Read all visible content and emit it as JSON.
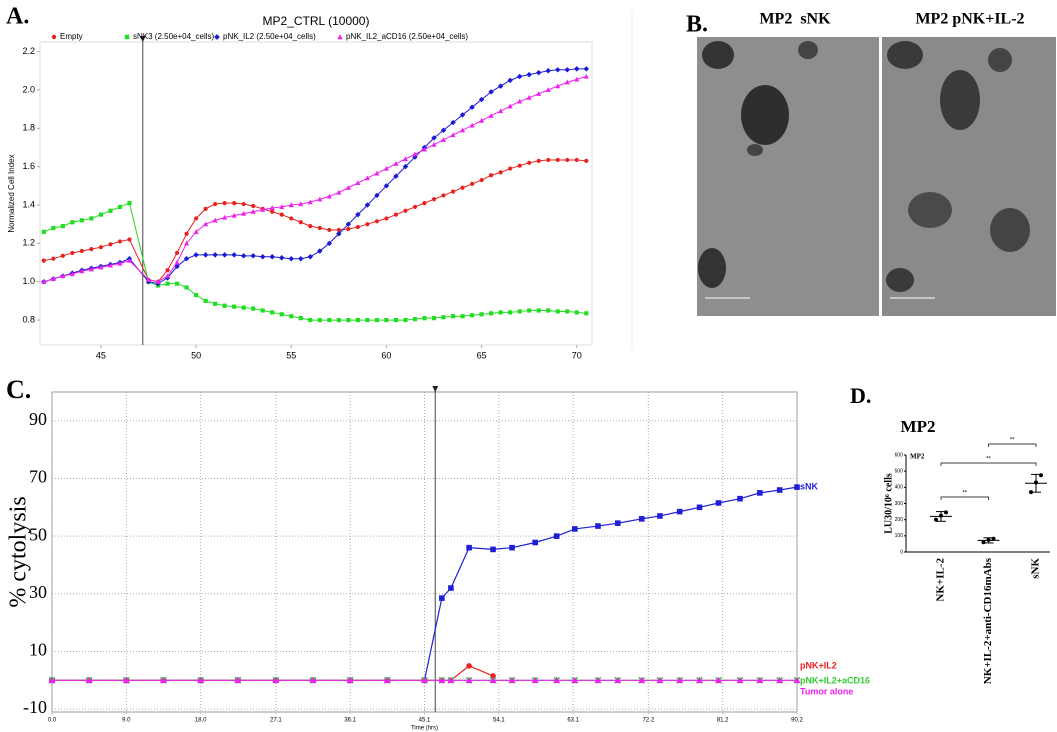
{
  "panels": {
    "a": "A.",
    "b": "B.",
    "c": "C.",
    "d": "D."
  },
  "images": {
    "captions": [
      "MP2  sNK",
      "MP2 pNK+IL-2"
    ]
  },
  "chart_data": [
    {
      "type": "line",
      "title": "MP2_CTRL (10000)",
      "ylabel": "Normalized Cell Index",
      "legend": "top",
      "grid": false,
      "vline": 47.2,
      "xlim": [
        41.8,
        70.8
      ],
      "xticks": [
        45,
        50,
        55,
        60,
        65,
        70
      ],
      "ylim": [
        0.67,
        2.25
      ],
      "yticks": [
        0.8,
        {
          "value": 1,
          "label": "1.0"
        },
        1.2,
        1.4,
        1.6,
        1.8,
        {
          "value": 2,
          "label": "2.0"
        },
        2.2
      ],
      "x": [
        42,
        42.5,
        43,
        43.5,
        44,
        44.5,
        45,
        45.5,
        46,
        46.5,
        47.5,
        48,
        48.5,
        49,
        49.5,
        50,
        50.5,
        51,
        51.5,
        52,
        52.5,
        53,
        53.5,
        54,
        54.5,
        55,
        55.5,
        56,
        56.5,
        57,
        57.5,
        58,
        58.5,
        59,
        59.5,
        60,
        60.5,
        61,
        61.5,
        62,
        62.5,
        63,
        63.5,
        64,
        64.5,
        65,
        65.5,
        66,
        66.5,
        67,
        67.5,
        68,
        68.5,
        69,
        69.5,
        70,
        70.5
      ],
      "series": [
        {
          "name": "Empty",
          "color": "#e8221e",
          "marker": "circle",
          "values": [
            1.11,
            1.12,
            1.135,
            1.15,
            1.16,
            1.17,
            1.18,
            1.195,
            1.21,
            1.22,
            1.01,
            1.0,
            1.06,
            1.15,
            1.25,
            1.33,
            1.38,
            1.405,
            1.41,
            1.41,
            1.405,
            1.395,
            1.38,
            1.365,
            1.35,
            1.33,
            1.31,
            1.29,
            1.28,
            1.27,
            1.27,
            1.275,
            1.285,
            1.3,
            1.315,
            1.33,
            1.35,
            1.37,
            1.39,
            1.41,
            1.43,
            1.45,
            1.47,
            1.49,
            1.51,
            1.53,
            1.555,
            1.57,
            1.59,
            1.605,
            1.62,
            1.63,
            1.635,
            1.635,
            1.635,
            1.635,
            1.63
          ]
        },
        {
          "name": "sNK3 (2.50e+04_cells)",
          "color": "#22dd22",
          "marker": "square",
          "values": [
            1.26,
            1.28,
            1.29,
            1.31,
            1.32,
            1.33,
            1.35,
            1.37,
            1.39,
            1.41,
            1.0,
            0.98,
            0.99,
            0.99,
            0.97,
            0.93,
            0.9,
            0.885,
            0.875,
            0.87,
            0.865,
            0.86,
            0.85,
            0.84,
            0.83,
            0.82,
            0.81,
            0.8,
            0.8,
            0.8,
            0.8,
            0.8,
            0.8,
            0.8,
            0.8,
            0.8,
            0.8,
            0.8,
            0.805,
            0.81,
            0.81,
            0.815,
            0.82,
            0.82,
            0.825,
            0.83,
            0.835,
            0.84,
            0.84,
            0.845,
            0.85,
            0.85,
            0.85,
            0.845,
            0.845,
            0.84,
            0.835
          ]
        },
        {
          "name": "pNK_IL2 (2.50e+04_cells)",
          "color": "#1a1ad6",
          "marker": "diamond",
          "values": [
            1.0,
            1.015,
            1.03,
            1.045,
            1.06,
            1.07,
            1.08,
            1.09,
            1.1,
            1.12,
            1.0,
            0.99,
            1.02,
            1.08,
            1.12,
            1.14,
            1.14,
            1.14,
            1.14,
            1.14,
            1.135,
            1.135,
            1.13,
            1.13,
            1.125,
            1.12,
            1.12,
            1.13,
            1.16,
            1.2,
            1.25,
            1.3,
            1.35,
            1.4,
            1.45,
            1.5,
            1.55,
            1.6,
            1.65,
            1.7,
            1.75,
            1.79,
            1.83,
            1.87,
            1.91,
            1.95,
            1.99,
            2.02,
            2.05,
            2.07,
            2.08,
            2.09,
            2.1,
            2.105,
            2.105,
            2.11,
            2.11
          ]
        },
        {
          "name": "pNK_IL2_aCD16 (2.50e+04_cells)",
          "color": "#ee22ee",
          "marker": "triangle",
          "values": [
            1.0,
            1.015,
            1.03,
            1.04,
            1.055,
            1.065,
            1.075,
            1.085,
            1.095,
            1.11,
            1.01,
            1.0,
            1.03,
            1.1,
            1.2,
            1.26,
            1.3,
            1.32,
            1.335,
            1.345,
            1.355,
            1.365,
            1.375,
            1.385,
            1.39,
            1.4,
            1.405,
            1.415,
            1.43,
            1.445,
            1.465,
            1.49,
            1.515,
            1.54,
            1.565,
            1.59,
            1.615,
            1.64,
            1.665,
            1.69,
            1.715,
            1.74,
            1.765,
            1.79,
            1.815,
            1.84,
            1.865,
            1.89,
            1.915,
            1.94,
            1.96,
            1.98,
            2.0,
            2.02,
            2.04,
            2.055,
            2.07
          ]
        }
      ]
    },
    {
      "type": "line",
      "ylabel": "% cytolysis",
      "xlabel": "Time (hrs)",
      "legend": "right",
      "grid": true,
      "vline": 46.4,
      "xlim": [
        0,
        90.2
      ],
      "xticks": [
        {
          "value": 0,
          "label": "0.0"
        },
        {
          "value": 9,
          "label": "9.0"
        },
        {
          "value": 18,
          "label": "18.0"
        },
        27.1,
        36.1,
        45.1,
        54.1,
        63.1,
        72.2,
        81.2,
        90.2
      ],
      "ylim": [
        -11,
        100
      ],
      "yticks": [
        -10,
        10,
        30,
        50,
        70,
        90
      ],
      "x": [
        0,
        4.5,
        9,
        13.5,
        18,
        22.5,
        27.1,
        31.6,
        36.1,
        40.6,
        45.1,
        47.2,
        48.3,
        50.5,
        53.4,
        55.7,
        58.5,
        61.1,
        63.3,
        66.1,
        68.5,
        71.4,
        73.6,
        76,
        78.4,
        80.7,
        83.3,
        85.7,
        88.1,
        90.2
      ],
      "series": [
        {
          "name": "sNK",
          "color": "#1f1fd6",
          "marker": "square",
          "values": [
            0,
            0,
            0,
            0,
            0,
            0,
            0,
            0,
            0,
            0,
            0,
            28.5,
            32,
            46,
            45.4,
            46,
            47.8,
            50,
            52.5,
            53.5,
            54.5,
            56,
            57,
            58.5,
            60,
            61.5,
            63,
            65,
            66,
            67
          ]
        },
        {
          "name": "pNK+IL2",
          "color": "#ee2020",
          "marker": "circle",
          "values": [
            0,
            0,
            0,
            0,
            0,
            0,
            0,
            0,
            0,
            0,
            0,
            0,
            0,
            5,
            1.5,
            null,
            null,
            null,
            null,
            null,
            null,
            null,
            null,
            null,
            null,
            null,
            null,
            null,
            null,
            null
          ]
        },
        {
          "name": "pNK+IL2+aCD16",
          "color": "#33cc33",
          "marker": "cross",
          "values": [
            0,
            0,
            0,
            0,
            0,
            0,
            0,
            0,
            0,
            0,
            0,
            0,
            0,
            0,
            0,
            0,
            0,
            0,
            0,
            0,
            0,
            0,
            0,
            0,
            0,
            0,
            0,
            0,
            0,
            0
          ]
        },
        {
          "name": "Tumor alone",
          "color": "#ee22ee",
          "marker": "triangle",
          "values": [
            0,
            0,
            0,
            0,
            0,
            0,
            0,
            0,
            0,
            0,
            0,
            0,
            0,
            0,
            0,
            0,
            0,
            0,
            0,
            0,
            0,
            0,
            0,
            0,
            0,
            0,
            0,
            0,
            0,
            0
          ]
        }
      ]
    },
    {
      "type": "dot",
      "title": "MP2",
      "plot_label": "MP2",
      "ylabel": "LU30/10⁶ cells",
      "color": "#000000",
      "categories": [
        "NK+IL-2",
        "NK+IL-2+anti-CD16mAbs",
        "sNK"
      ],
      "points": [
        [
          200,
          225,
          245
        ],
        [
          60,
          75,
          82
        ],
        [
          370,
          430,
          475
        ]
      ],
      "means": [
        220,
        72,
        425
      ],
      "errors": [
        30,
        16,
        55
      ],
      "ylim": [
        0,
        600
      ],
      "yticks": [
        0,
        100,
        200,
        300,
        400,
        500,
        600
      ],
      "brackets": [
        {
          "from": 0,
          "to": 1,
          "label": "**"
        },
        {
          "from": 0,
          "to": 2,
          "label": "**"
        },
        {
          "from": 1,
          "to": 2,
          "label": "**"
        }
      ]
    }
  ]
}
